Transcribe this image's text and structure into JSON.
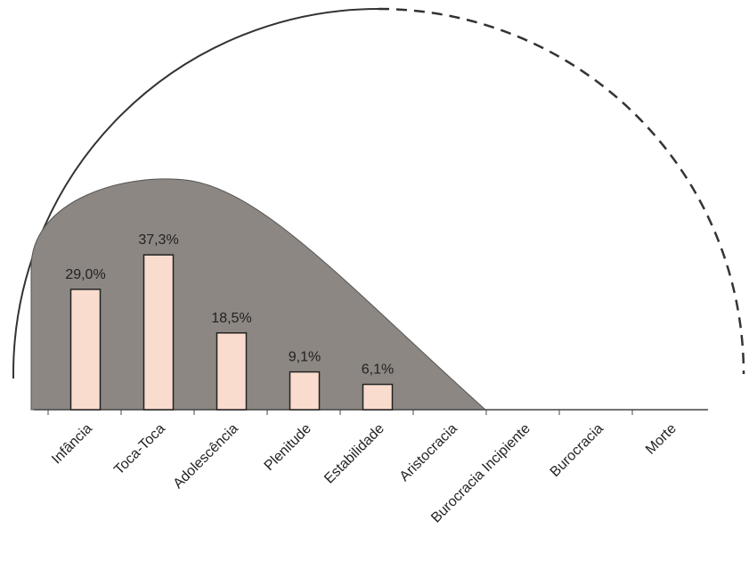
{
  "chart_data": {
    "type": "bar",
    "categories": [
      "Infância",
      "Toca-Toca",
      "Adolescência",
      "Plenitude",
      "Estabilidade",
      "Aristocracia",
      "Burocracia Incipiente",
      "Burocracia",
      "Morte"
    ],
    "values": [
      29.0,
      37.3,
      18.5,
      9.1,
      6.1,
      null,
      null,
      null,
      null
    ],
    "value_labels": [
      "29,0%",
      "37,3%",
      "18,5%",
      "9,1%",
      "6,1%",
      null,
      null,
      null,
      null
    ],
    "color": "#f9dccd"
  }
}
